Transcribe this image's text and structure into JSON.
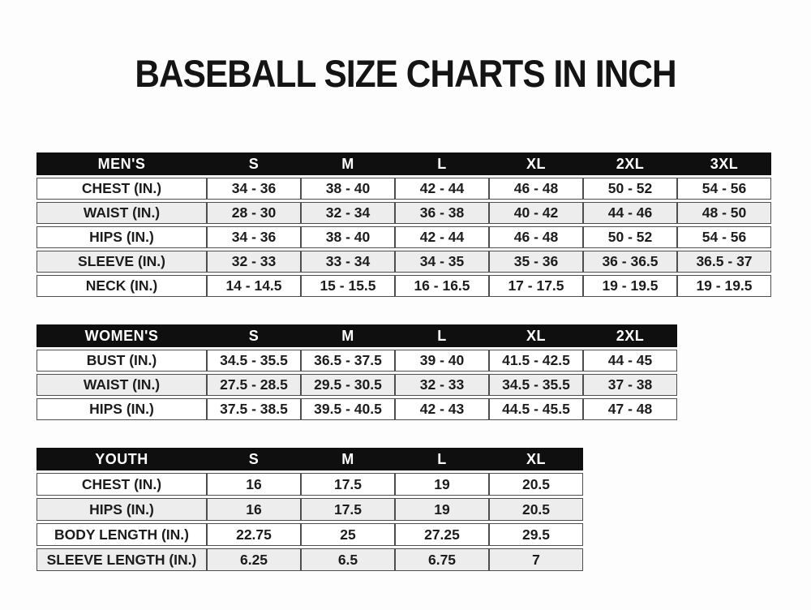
{
  "page": {
    "title": "BASEBALL SIZE CHARTS IN INCH"
  },
  "colors": {
    "header_bg": "#0f0f0f",
    "header_text": "#ffffff",
    "row_stripe": "#ededed",
    "border_vertical": "#4e4e4e",
    "text": "#1c1c1c",
    "page_bg": "#fdfdfd"
  },
  "tables": [
    {
      "id": "mens",
      "title": "MEN'S",
      "header": [
        "MEN'S",
        "S",
        "M",
        "L",
        "XL",
        "2XL",
        "3XL"
      ],
      "rows": [
        [
          "CHEST (IN.)",
          "34 - 36",
          "38 - 40",
          "42 - 44",
          "46 - 48",
          "50 - 52",
          "54 - 56"
        ],
        [
          "WAIST (IN.)",
          "28 - 30",
          "32 - 34",
          "36 - 38",
          "40 - 42",
          "44 - 46",
          "48 - 50"
        ],
        [
          "HIPS (IN.)",
          "34 - 36",
          "38 - 40",
          "42 - 44",
          "46 - 48",
          "50 - 52",
          "54 - 56"
        ],
        [
          "SLEEVE (IN.)",
          "32 - 33",
          "33 - 34",
          "34 - 35",
          "35 - 36",
          "36 - 36.5",
          "36.5 - 37"
        ],
        [
          "NECK (IN.)",
          "14 - 14.5",
          "15 - 15.5",
          "16 - 16.5",
          "17 - 17.5",
          "19 - 19.5",
          "19 - 19.5"
        ]
      ]
    },
    {
      "id": "womens",
      "title": "WOMEN'S",
      "header": [
        "WOMEN'S",
        "S",
        "M",
        "L",
        "XL",
        "2XL"
      ],
      "rows": [
        [
          "BUST (IN.)",
          "34.5 - 35.5",
          "36.5 - 37.5",
          "39 - 40",
          "41.5 - 42.5",
          "44 - 45"
        ],
        [
          "WAIST (IN.)",
          "27.5 - 28.5",
          "29.5 - 30.5",
          "32 - 33",
          "34.5 - 35.5",
          "37 - 38"
        ],
        [
          "HIPS (IN.)",
          "37.5 - 38.5",
          "39.5 - 40.5",
          "42 - 43",
          "44.5 - 45.5",
          "47 - 48"
        ]
      ]
    },
    {
      "id": "youth",
      "title": "YOUTH",
      "header": [
        "YOUTH",
        "S",
        "M",
        "L",
        "XL"
      ],
      "rows": [
        [
          "CHEST (IN.)",
          "16",
          "17.5",
          "19",
          "20.5"
        ],
        [
          "HIPS (IN.)",
          "16",
          "17.5",
          "19",
          "20.5"
        ],
        [
          "BODY LENGTH (IN.)",
          "22.75",
          "25",
          "27.25",
          "29.5"
        ],
        [
          "SLEEVE LENGTH (IN.)",
          "6.25",
          "6.5",
          "6.75",
          "7"
        ]
      ]
    }
  ]
}
